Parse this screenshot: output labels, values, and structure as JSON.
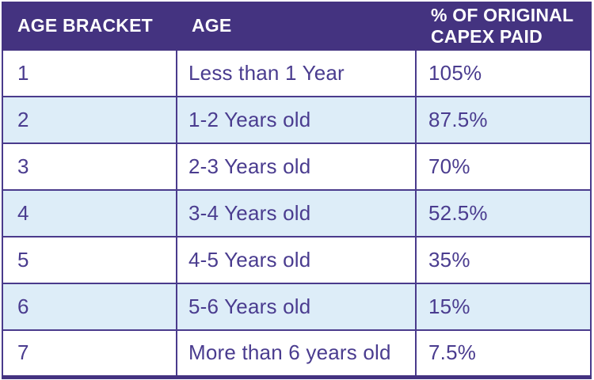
{
  "colors": {
    "header_bg": "#443380",
    "border": "#4A3B8C",
    "row_alt_bg": "#DDEDF8",
    "text": "#4A3C8F",
    "header_text": "#FFFFFF"
  },
  "table": {
    "headers": [
      "AGE BRACKET",
      "AGE",
      "% OF ORIGINAL CAPEX PAID"
    ],
    "rows": [
      [
        "1",
        "Less than 1 Year",
        "105%"
      ],
      [
        "2",
        "1-2 Years old",
        "87.5%"
      ],
      [
        "3",
        "2-3 Years old",
        "70%"
      ],
      [
        "4",
        "3-4 Years old",
        "52.5%"
      ],
      [
        "5",
        "4-5 Years old",
        "35%"
      ],
      [
        "6",
        "5-6 Years old",
        "15%"
      ],
      [
        "7",
        "More than 6 years old",
        "7.5%"
      ]
    ]
  },
  "chart_data": {
    "type": "table",
    "title": "",
    "columns": [
      "AGE BRACKET",
      "AGE",
      "% OF ORIGINAL CAPEX PAID"
    ],
    "rows": [
      [
        "1",
        "Less than 1 Year",
        "105%"
      ],
      [
        "2",
        "1-2 Years old",
        "87.5%"
      ],
      [
        "3",
        "2-3 Years old",
        "70%"
      ],
      [
        "4",
        "3-4 Years old",
        "52.5%"
      ],
      [
        "5",
        "4-5 Years old",
        "35%"
      ],
      [
        "6",
        "5-6 Years old",
        "15%"
      ],
      [
        "7",
        "More than 6 years old",
        "7.5%"
      ]
    ],
    "age_brackets": [
      1,
      2,
      3,
      4,
      5,
      6,
      7
    ],
    "capex_paid_percent": [
      105,
      87.5,
      70,
      52.5,
      35,
      15,
      7.5
    ]
  }
}
